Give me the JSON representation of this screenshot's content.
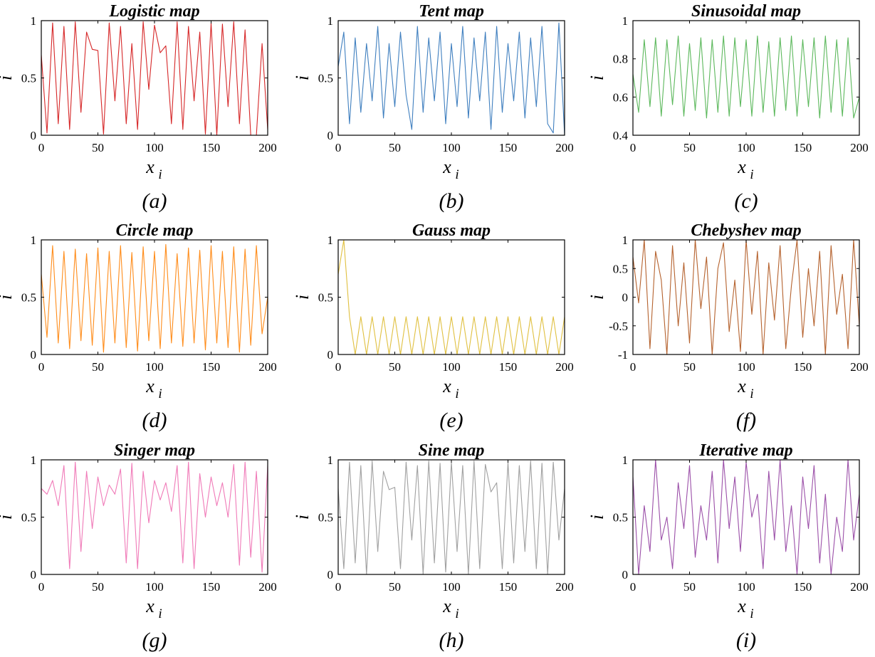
{
  "figure": {
    "panel_count": 9
  },
  "chart_data": [
    {
      "type": "line",
      "title": "Logistic map",
      "caption": "(a)",
      "xlabel": "x",
      "xlabel_subscript": "i",
      "ylabel": "i",
      "xlim": [
        0,
        200
      ],
      "ylim": [
        0,
        1
      ],
      "xticks": [
        "0",
        "50",
        "100",
        "150",
        "200"
      ],
      "yticks": [
        "0",
        "0.5",
        "1"
      ],
      "color": "#d62728",
      "x": [
        0,
        5,
        10,
        15,
        20,
        25,
        30,
        35,
        40,
        45,
        50,
        55,
        60,
        65,
        70,
        75,
        80,
        85,
        90,
        95,
        100,
        105,
        110,
        115,
        120,
        125,
        130,
        135,
        140,
        145,
        150,
        155,
        160,
        165,
        170,
        175,
        180,
        185,
        190,
        195,
        200
      ],
      "series": [
        {
          "name": "Logistic map",
          "values": [
            0.7,
            0.02,
            0.98,
            0.1,
            0.95,
            0.05,
            0.99,
            0.2,
            0.9,
            0.75,
            0.74,
            0.01,
            0.98,
            0.3,
            0.95,
            0.1,
            0.8,
            0.05,
            0.99,
            0.4,
            0.96,
            0.72,
            0.78,
            0.1,
            0.99,
            0.05,
            0.95,
            0.3,
            0.9,
            0.01,
            0.98,
            0.0,
            0.97,
            0.25,
            0.99,
            0.1,
            0.92,
            0.0,
            0.0,
            0.8,
            0.05
          ]
        }
      ]
    },
    {
      "type": "line",
      "title": "Tent map",
      "caption": "(b)",
      "xlabel": "x",
      "xlabel_subscript": "i",
      "ylabel": "i",
      "xlim": [
        0,
        200
      ],
      "ylim": [
        0,
        1
      ],
      "xticks": [
        "0",
        "50",
        "100",
        "150",
        "200"
      ],
      "yticks": [
        "0",
        "0.5",
        "1"
      ],
      "color": "#3f7fbf",
      "x": [
        0,
        5,
        10,
        15,
        20,
        25,
        30,
        35,
        40,
        45,
        50,
        55,
        60,
        65,
        70,
        75,
        80,
        85,
        90,
        95,
        100,
        105,
        110,
        115,
        120,
        125,
        130,
        135,
        140,
        145,
        150,
        155,
        160,
        165,
        170,
        175,
        180,
        185,
        190,
        195,
        200
      ],
      "series": [
        {
          "name": "Tent map",
          "values": [
            0.6,
            0.9,
            0.1,
            0.85,
            0.2,
            0.8,
            0.3,
            0.95,
            0.15,
            0.8,
            0.25,
            0.9,
            0.35,
            0.05,
            0.95,
            0.2,
            0.85,
            0.3,
            0.9,
            0.1,
            0.8,
            0.25,
            0.95,
            0.15,
            0.85,
            0.3,
            0.9,
            0.05,
            0.95,
            0.2,
            0.8,
            0.3,
            0.9,
            0.15,
            0.85,
            0.25,
            0.95,
            0.1,
            0.02,
            0.98,
            0.0
          ]
        }
      ]
    },
    {
      "type": "line",
      "title": "Sinusoidal map",
      "caption": "(c)",
      "xlabel": "x",
      "xlabel_subscript": "i",
      "ylabel": "i",
      "xlim": [
        0,
        200
      ],
      "ylim": [
        0.4,
        1
      ],
      "xticks": [
        "0",
        "50",
        "100",
        "150",
        "200"
      ],
      "yticks": [
        "0.4",
        "0.6",
        "0.8",
        "1"
      ],
      "color": "#5cb85c",
      "x": [
        0,
        5,
        10,
        15,
        20,
        25,
        30,
        35,
        40,
        45,
        50,
        55,
        60,
        65,
        70,
        75,
        80,
        85,
        90,
        95,
        100,
        105,
        110,
        115,
        120,
        125,
        130,
        135,
        140,
        145,
        150,
        155,
        160,
        165,
        170,
        175,
        180,
        185,
        190,
        195,
        200
      ],
      "series": [
        {
          "name": "Sinusoidal map",
          "values": [
            0.72,
            0.52,
            0.9,
            0.55,
            0.91,
            0.5,
            0.9,
            0.56,
            0.92,
            0.5,
            0.88,
            0.53,
            0.91,
            0.49,
            0.9,
            0.52,
            0.92,
            0.5,
            0.91,
            0.55,
            0.9,
            0.5,
            0.92,
            0.52,
            0.89,
            0.5,
            0.91,
            0.53,
            0.92,
            0.5,
            0.9,
            0.55,
            0.91,
            0.49,
            0.92,
            0.52,
            0.9,
            0.5,
            0.91,
            0.49,
            0.6
          ]
        }
      ]
    },
    {
      "type": "line",
      "title": "Circle map",
      "caption": "(d)",
      "xlabel": "x",
      "xlabel_subscript": "i",
      "ylabel": "i",
      "xlim": [
        0,
        200
      ],
      "ylim": [
        0,
        1
      ],
      "xticks": [
        "0",
        "50",
        "100",
        "150",
        "200"
      ],
      "yticks": [
        "0",
        "0.5",
        "1"
      ],
      "color": "#ff8c1a",
      "x": [
        0,
        5,
        10,
        15,
        20,
        25,
        30,
        35,
        40,
        45,
        50,
        55,
        60,
        65,
        70,
        75,
        80,
        85,
        90,
        95,
        100,
        105,
        110,
        115,
        120,
        125,
        130,
        135,
        140,
        145,
        150,
        155,
        160,
        165,
        170,
        175,
        180,
        185,
        190,
        195,
        200
      ],
      "series": [
        {
          "name": "Circle map",
          "values": [
            0.7,
            0.15,
            0.95,
            0.1,
            0.9,
            0.05,
            0.92,
            0.12,
            0.88,
            0.08,
            0.93,
            0.02,
            0.9,
            0.1,
            0.95,
            0.06,
            0.89,
            0.03,
            0.94,
            0.12,
            0.9,
            0.05,
            0.96,
            0.1,
            0.88,
            0.07,
            0.93,
            0.1,
            0.91,
            0.04,
            0.95,
            0.1,
            0.9,
            0.06,
            0.94,
            0.02,
            0.92,
            0.08,
            0.95,
            0.18,
            0.5
          ]
        }
      ]
    },
    {
      "type": "line",
      "title": "Gauss map",
      "caption": "(e)",
      "xlabel": "x",
      "xlabel_subscript": "i",
      "ylabel": "i",
      "xlim": [
        0,
        200
      ],
      "ylim": [
        0,
        1
      ],
      "xticks": [
        "0",
        "50",
        "100",
        "150",
        "200"
      ],
      "yticks": [
        "0",
        "0.5",
        "1"
      ],
      "color": "#e0c040",
      "x": [
        0,
        5,
        10,
        15,
        20,
        25,
        30,
        35,
        40,
        45,
        50,
        55,
        60,
        65,
        70,
        75,
        80,
        85,
        90,
        95,
        100,
        105,
        110,
        115,
        120,
        125,
        130,
        135,
        140,
        145,
        150,
        155,
        160,
        165,
        170,
        175,
        180,
        185,
        190,
        195,
        200
      ],
      "series": [
        {
          "name": "Gauss map",
          "values": [
            0.7,
            1.0,
            0.33,
            0.0,
            0.33,
            0.0,
            0.33,
            0.0,
            0.33,
            0.0,
            0.33,
            0.0,
            0.33,
            0.0,
            0.33,
            0.0,
            0.33,
            0.0,
            0.33,
            0.0,
            0.33,
            0.0,
            0.33,
            0.0,
            0.33,
            0.0,
            0.33,
            0.0,
            0.33,
            0.0,
            0.33,
            0.0,
            0.33,
            0.0,
            0.33,
            0.0,
            0.33,
            0.0,
            0.33,
            0.0,
            0.33
          ]
        }
      ]
    },
    {
      "type": "line",
      "title": "Chebyshev map",
      "caption": "(f)",
      "xlabel": "x",
      "xlabel_subscript": "i",
      "ylabel": "i",
      "xlim": [
        0,
        200
      ],
      "ylim": [
        -1,
        1
      ],
      "xticks": [
        "0",
        "50",
        "100",
        "150",
        "200"
      ],
      "yticks": [
        "-1",
        "-0.5",
        "0",
        "0.5",
        "1"
      ],
      "color": "#b5622e",
      "x": [
        0,
        5,
        10,
        15,
        20,
        25,
        30,
        35,
        40,
        45,
        50,
        55,
        60,
        65,
        70,
        75,
        80,
        85,
        90,
        95,
        100,
        105,
        110,
        115,
        120,
        125,
        130,
        135,
        140,
        145,
        150,
        155,
        160,
        165,
        170,
        175,
        180,
        185,
        190,
        195,
        200
      ],
      "series": [
        {
          "name": "Chebyshev map",
          "values": [
            0.7,
            -0.1,
            1.0,
            -0.9,
            0.8,
            0.3,
            -1.0,
            0.9,
            -0.5,
            0.6,
            -0.8,
            1.0,
            -0.2,
            0.7,
            -1.0,
            0.5,
            0.95,
            -0.6,
            0.3,
            -0.95,
            1.0,
            -0.3,
            0.8,
            -1.0,
            0.6,
            -0.4,
            0.9,
            -0.9,
            0.2,
            1.0,
            -0.7,
            0.5,
            -0.5,
            0.8,
            -1.0,
            0.9,
            -0.3,
            0.4,
            -0.9,
            1.0,
            -0.5
          ]
        }
      ]
    },
    {
      "type": "line",
      "title": "Singer map",
      "caption": "(g)",
      "xlabel": "x",
      "xlabel_subscript": "i",
      "ylabel": "i",
      "xlim": [
        0,
        200
      ],
      "ylim": [
        0,
        1
      ],
      "xticks": [
        "0",
        "50",
        "100",
        "150",
        "200"
      ],
      "yticks": [
        "0",
        "0.5",
        "1"
      ],
      "color": "#f07ab8",
      "x": [
        0,
        5,
        10,
        15,
        20,
        25,
        30,
        35,
        40,
        45,
        50,
        55,
        60,
        65,
        70,
        75,
        80,
        85,
        90,
        95,
        100,
        105,
        110,
        115,
        120,
        125,
        130,
        135,
        140,
        145,
        150,
        155,
        160,
        165,
        170,
        175,
        180,
        185,
        190,
        195,
        200
      ],
      "series": [
        {
          "name": "Singer map",
          "values": [
            0.75,
            0.7,
            0.82,
            0.6,
            0.95,
            0.05,
            0.98,
            0.2,
            0.9,
            0.4,
            0.85,
            0.6,
            0.78,
            0.7,
            0.92,
            0.1,
            0.97,
            0.05,
            0.9,
            0.45,
            0.82,
            0.65,
            0.8,
            0.55,
            0.95,
            0.1,
            0.98,
            0.05,
            0.88,
            0.5,
            0.85,
            0.6,
            0.8,
            0.5,
            0.96,
            0.08,
            0.98,
            0.15,
            0.9,
            0.02,
            0.95
          ]
        }
      ]
    },
    {
      "type": "line",
      "title": "Sine map",
      "caption": "(h)",
      "xlabel": "x",
      "xlabel_subscript": "i",
      "ylabel": "i",
      "xlim": [
        0,
        200
      ],
      "ylim": [
        0,
        1
      ],
      "xticks": [
        "0",
        "50",
        "100",
        "150",
        "200"
      ],
      "yticks": [
        "0",
        "0.5",
        "1"
      ],
      "color": "#a0a0a0",
      "x": [
        0,
        5,
        10,
        15,
        20,
        25,
        30,
        35,
        40,
        45,
        50,
        55,
        60,
        65,
        70,
        75,
        80,
        85,
        90,
        95,
        100,
        105,
        110,
        115,
        120,
        125,
        130,
        135,
        140,
        145,
        150,
        155,
        160,
        165,
        170,
        175,
        180,
        185,
        190,
        195,
        200
      ],
      "series": [
        {
          "name": "Sine map",
          "values": [
            0.75,
            0.05,
            0.98,
            0.1,
            0.95,
            0.0,
            0.99,
            0.2,
            0.9,
            0.74,
            0.76,
            0.05,
            0.98,
            0.3,
            0.95,
            0.0,
            0.99,
            0.1,
            0.97,
            0.02,
            0.98,
            0.2,
            0.95,
            0.0,
            0.99,
            0.05,
            0.96,
            0.72,
            0.8,
            0.05,
            0.98,
            0.1,
            0.95,
            0.2,
            0.99,
            0.05,
            0.97,
            0.0,
            0.98,
            0.3,
            0.75
          ]
        }
      ]
    },
    {
      "type": "line",
      "title": "Iterative map",
      "caption": "(i)",
      "xlabel": "x",
      "xlabel_subscript": "i",
      "ylabel": "i",
      "xlim": [
        0,
        200
      ],
      "ylim": [
        0,
        1
      ],
      "xticks": [
        "0",
        "50",
        "100",
        "150",
        "200"
      ],
      "yticks": [
        "0",
        "0.5",
        "1"
      ],
      "color": "#9b4fa8",
      "x": [
        0,
        5,
        10,
        15,
        20,
        25,
        30,
        35,
        40,
        45,
        50,
        55,
        60,
        65,
        70,
        75,
        80,
        85,
        90,
        95,
        100,
        105,
        110,
        115,
        120,
        125,
        130,
        135,
        140,
        145,
        150,
        155,
        160,
        165,
        170,
        175,
        180,
        185,
        190,
        195,
        200
      ],
      "series": [
        {
          "name": "Iterative map",
          "values": [
            0.85,
            0.0,
            0.6,
            0.2,
            1.0,
            0.3,
            0.5,
            0.05,
            0.8,
            0.4,
            0.95,
            0.15,
            0.6,
            0.3,
            0.9,
            0.1,
            1.0,
            0.4,
            0.85,
            0.2,
            0.98,
            0.5,
            0.7,
            0.05,
            0.9,
            0.3,
            1.0,
            0.2,
            0.6,
            0.0,
            0.85,
            0.4,
            0.95,
            0.1,
            0.7,
            0.0,
            0.5,
            0.2,
            1.0,
            0.3,
            0.7
          ]
        }
      ]
    }
  ]
}
